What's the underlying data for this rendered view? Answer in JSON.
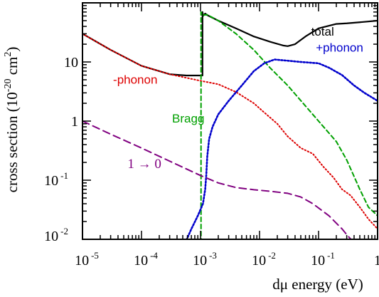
{
  "chart_data": {
    "type": "line",
    "x_scale": "log",
    "y_scale": "log",
    "xlim": [
      1e-05,
      1
    ],
    "ylim": [
      0.01,
      100
    ],
    "xlabel": "dμ energy (eV)",
    "ylabel": "cross section (10-20 cm2)",
    "ylabel_parts": {
      "base": "cross section (10",
      "exp1": "-20",
      "mid": " cm",
      "exp2": "2",
      "end": ")"
    },
    "xlabel_parts": {
      "greek": "dμ",
      "rest": " energy (eV)"
    },
    "x_ticks": [
      {
        "base": "10",
        "exp": "-5",
        "value": 1e-05
      },
      {
        "base": "10",
        "exp": "-4",
        "value": 0.0001
      },
      {
        "base": "10",
        "exp": "-3",
        "value": 0.001
      },
      {
        "base": "10",
        "exp": "-2",
        "value": 0.01
      },
      {
        "base": "10",
        "exp": "-1",
        "value": 0.1
      },
      {
        "base": "1",
        "exp": "",
        "value": 1
      }
    ],
    "y_ticks": [
      {
        "base": "10",
        "exp": "-2",
        "value": 0.01
      },
      {
        "base": "10",
        "exp": "-1",
        "value": 0.1
      },
      {
        "base": "1",
        "exp": "",
        "value": 1
      },
      {
        "base": "10",
        "exp": "",
        "value": 10
      }
    ],
    "series": [
      {
        "name": "total",
        "color": "#000000",
        "dash": "",
        "width": 2.2,
        "points": [
          [
            1e-05,
            30
          ],
          [
            3e-05,
            16
          ],
          [
            0.0001,
            8.6
          ],
          [
            0.0003,
            6.2
          ],
          [
            0.00058,
            5.9
          ],
          [
            0.00108,
            5.9
          ],
          [
            0.00108,
            70
          ],
          [
            0.0011,
            60
          ],
          [
            0.0012,
            66
          ],
          [
            0.0013,
            62
          ],
          [
            0.002,
            50
          ],
          [
            0.004,
            37
          ],
          [
            0.008,
            27
          ],
          [
            0.015,
            22
          ],
          [
            0.025,
            19
          ],
          [
            0.03,
            18.5
          ],
          [
            0.04,
            20
          ],
          [
            0.06,
            27
          ],
          [
            0.1,
            37
          ],
          [
            0.2,
            44
          ],
          [
            0.3,
            45
          ],
          [
            0.5,
            47
          ],
          [
            1,
            50
          ]
        ]
      },
      {
        "name": "-phonon",
        "color": "#dd0000",
        "dash": "1.5,3",
        "width": 2,
        "points": [
          [
            1e-05,
            30
          ],
          [
            3e-05,
            16
          ],
          [
            0.0001,
            8.6
          ],
          [
            0.0003,
            6.2
          ],
          [
            0.001,
            4.8
          ],
          [
            0.002,
            4.2
          ],
          [
            0.004,
            3.1
          ],
          [
            0.008,
            2
          ],
          [
            0.012,
            1.4
          ],
          [
            0.02,
            0.9
          ],
          [
            0.03,
            0.55
          ],
          [
            0.05,
            0.35
          ],
          [
            0.08,
            0.28
          ],
          [
            0.12,
            0.17
          ],
          [
            0.18,
            0.11
          ],
          [
            0.25,
            0.07
          ],
          [
            0.35,
            0.055
          ],
          [
            0.5,
            0.035
          ],
          [
            0.7,
            0.022
          ],
          [
            1,
            0.015
          ]
        ]
      },
      {
        "name": "Bragg",
        "color": "#00a000",
        "dash": "6,4",
        "width": 2,
        "points": [
          [
            0.00102,
            0.0087
          ],
          [
            0.00102,
            3
          ],
          [
            0.00102,
            70
          ],
          [
            0.0011,
            62
          ],
          [
            0.0013,
            63
          ],
          [
            0.002,
            50
          ],
          [
            0.004,
            30
          ],
          [
            0.008,
            16
          ],
          [
            0.015,
            8
          ],
          [
            0.03,
            4
          ],
          [
            0.06,
            1.8
          ],
          [
            0.1,
            1
          ],
          [
            0.2,
            0.45
          ],
          [
            0.3,
            0.22
          ],
          [
            0.5,
            0.07
          ],
          [
            0.7,
            0.035
          ],
          [
            1,
            0.025
          ]
        ]
      },
      {
        "name": "+phonon",
        "color": "#0000cc",
        "dash": "2,2.5",
        "width": 2.6,
        "points": [
          [
            0.00055,
            0.0087
          ],
          [
            0.0007,
            0.015
          ],
          [
            0.0009,
            0.025
          ],
          [
            0.0011,
            0.04
          ],
          [
            0.0012,
            0.07
          ],
          [
            0.00125,
            0.12
          ],
          [
            0.0013,
            0.25
          ],
          [
            0.0014,
            0.5
          ],
          [
            0.0016,
            0.8
          ],
          [
            0.002,
            1.3
          ],
          [
            0.003,
            2.2
          ],
          [
            0.005,
            4
          ],
          [
            0.008,
            7
          ],
          [
            0.012,
            9.5
          ],
          [
            0.018,
            11
          ],
          [
            0.03,
            10.5
          ],
          [
            0.05,
            10
          ],
          [
            0.1,
            9.5
          ],
          [
            0.15,
            8
          ],
          [
            0.25,
            6
          ],
          [
            0.4,
            4
          ],
          [
            0.6,
            3
          ],
          [
            1,
            2.2
          ]
        ]
      },
      {
        "name": "1 → 0",
        "color": "#800080",
        "dash": "10,6",
        "width": 2,
        "points": [
          [
            1e-05,
            1
          ],
          [
            3e-05,
            0.6
          ],
          [
            0.0001,
            0.35
          ],
          [
            0.0003,
            0.21
          ],
          [
            0.001,
            0.12
          ],
          [
            0.002,
            0.09
          ],
          [
            0.004,
            0.075
          ],
          [
            0.008,
            0.069
          ],
          [
            0.015,
            0.065
          ],
          [
            0.03,
            0.06
          ],
          [
            0.05,
            0.052
          ],
          [
            0.08,
            0.04
          ],
          [
            0.15,
            0.025
          ],
          [
            0.25,
            0.015
          ],
          [
            0.3,
            0.012
          ],
          [
            0.4,
            0.0087
          ]
        ]
      }
    ],
    "annotations": [
      {
        "text": "total",
        "color": "#000000",
        "x": 0.075,
        "y": 28
      },
      {
        "text": "+phonon",
        "color": "#0000cc",
        "x": 0.09,
        "y": 15
      },
      {
        "text": "-phonon",
        "color": "#dd0000",
        "x": 3.3e-05,
        "y": 4.3
      },
      {
        "text": "Bragg",
        "color": "#00a000",
        "x": 0.00033,
        "y": 0.95
      },
      {
        "text": "1 → 0",
        "color": "#800080",
        "x": 5.8e-05,
        "y": 0.16
      }
    ]
  }
}
